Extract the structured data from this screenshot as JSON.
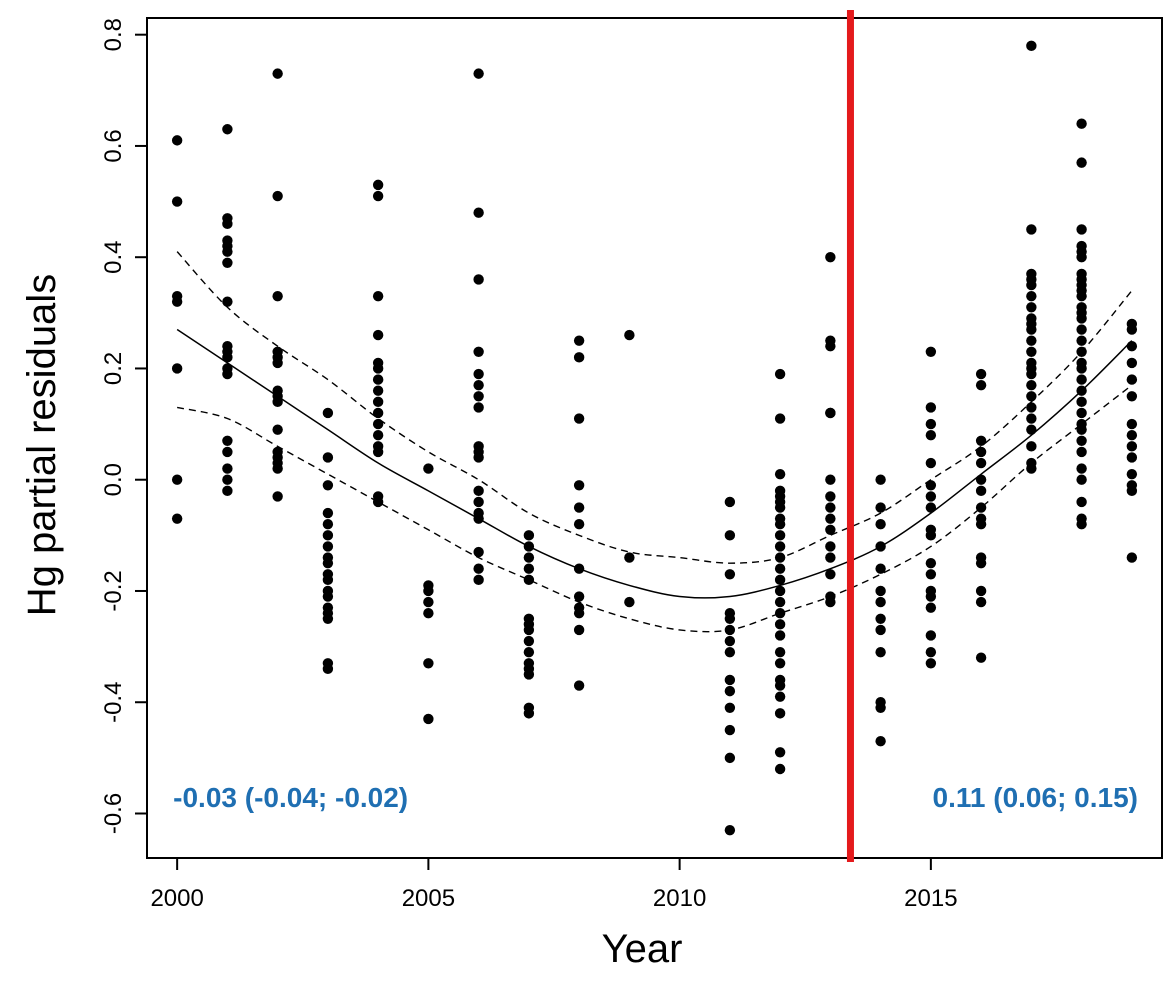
{
  "chart_data": {
    "type": "scatter",
    "title": "",
    "xlabel": "Year",
    "ylabel": "Hg partial residuals",
    "xlim": [
      1999.4,
      2019.6
    ],
    "ylim": [
      -0.68,
      0.83
    ],
    "x_ticks": [
      2000,
      2005,
      2010,
      2015
    ],
    "y_ticks": [
      -0.6,
      -0.4,
      -0.2,
      0.0,
      0.2,
      0.4,
      0.6,
      0.8
    ],
    "y_tick_labels": [
      "-0.6",
      "-0.4",
      "-0.2",
      "0.0",
      "0.2",
      "0.4",
      "0.6",
      "0.8"
    ],
    "grid": false,
    "colors": {
      "points": "#000000",
      "breakpoint": "#e41a1c",
      "annotation": "#1f6fb2"
    },
    "breakpoint_x": 2013.4,
    "annotations": [
      {
        "text": "-0.03 (-0.04; -0.02)",
        "x": 2000,
        "y": -0.57,
        "anchor": "start"
      },
      {
        "text": "0.11 (0.06; 0.15)",
        "x": 2019.6,
        "y": -0.57,
        "anchor": "end"
      }
    ],
    "points": [
      {
        "x": 2000,
        "y": [
          0.61,
          0.5,
          0.33,
          0.32,
          0.2,
          0.0,
          -0.07
        ]
      },
      {
        "x": 2001,
        "y": [
          0.63,
          0.47,
          0.46,
          0.43,
          0.42,
          0.41,
          0.39,
          0.32,
          0.24,
          0.23,
          0.22,
          0.2,
          0.19,
          0.07,
          0.05,
          0.02,
          0.0,
          -0.02
        ]
      },
      {
        "x": 2002,
        "y": [
          0.73,
          0.51,
          0.33,
          0.23,
          0.22,
          0.21,
          0.16,
          0.15,
          0.14,
          0.09,
          0.05,
          0.04,
          0.03,
          0.02,
          -0.03
        ]
      },
      {
        "x": 2003,
        "y": [
          0.12,
          0.04,
          -0.01,
          -0.06,
          -0.08,
          -0.1,
          -0.12,
          -0.14,
          -0.15,
          -0.17,
          -0.18,
          -0.2,
          -0.21,
          -0.23,
          -0.24,
          -0.25,
          -0.33,
          -0.34
        ]
      },
      {
        "x": 2004,
        "y": [
          0.53,
          0.51,
          0.33,
          0.26,
          0.21,
          0.2,
          0.18,
          0.16,
          0.14,
          0.12,
          0.1,
          0.08,
          0.06,
          0.05,
          -0.03,
          -0.04
        ]
      },
      {
        "x": 2005,
        "y": [
          0.02,
          -0.19,
          -0.2,
          -0.22,
          -0.24,
          -0.33,
          -0.43
        ]
      },
      {
        "x": 2006,
        "y": [
          0.73,
          0.48,
          0.36,
          0.23,
          0.19,
          0.17,
          0.15,
          0.13,
          0.06,
          0.05,
          0.04,
          -0.02,
          -0.04,
          -0.06,
          -0.07,
          -0.13,
          -0.16,
          -0.18
        ]
      },
      {
        "x": 2007,
        "y": [
          -0.1,
          -0.12,
          -0.14,
          -0.16,
          -0.18,
          -0.25,
          -0.26,
          -0.27,
          -0.29,
          -0.31,
          -0.33,
          -0.34,
          -0.35,
          -0.41,
          -0.42
        ]
      },
      {
        "x": 2008,
        "y": [
          0.25,
          0.22,
          0.11,
          -0.01,
          -0.05,
          -0.08,
          -0.16,
          -0.21,
          -0.23,
          -0.24,
          -0.27,
          -0.37
        ]
      },
      {
        "x": 2009,
        "y": [
          0.26,
          -0.14,
          -0.22
        ]
      },
      {
        "x": 2011,
        "y": [
          -0.04,
          -0.1,
          -0.17,
          -0.24,
          -0.25,
          -0.27,
          -0.29,
          -0.31,
          -0.36,
          -0.38,
          -0.41,
          -0.45,
          -0.5,
          -0.63
        ]
      },
      {
        "x": 2012,
        "y": [
          0.19,
          0.11,
          0.01,
          -0.02,
          -0.03,
          -0.04,
          -0.05,
          -0.07,
          -0.08,
          -0.1,
          -0.12,
          -0.14,
          -0.16,
          -0.18,
          -0.2,
          -0.22,
          -0.24,
          -0.26,
          -0.28,
          -0.31,
          -0.33,
          -0.36,
          -0.37,
          -0.39,
          -0.42,
          -0.49,
          -0.52
        ]
      },
      {
        "x": 2013,
        "y": [
          0.4,
          0.25,
          0.24,
          0.12,
          0.12,
          0.0,
          -0.03,
          -0.05,
          -0.07,
          -0.09,
          -0.12,
          -0.14,
          -0.17,
          -0.21,
          -0.22
        ]
      },
      {
        "x": 2014,
        "y": [
          0.0,
          -0.05,
          -0.08,
          -0.12,
          -0.16,
          -0.2,
          -0.22,
          -0.25,
          -0.27,
          -0.31,
          -0.4,
          -0.41,
          -0.47
        ]
      },
      {
        "x": 2015,
        "y": [
          0.23,
          0.13,
          0.1,
          0.08,
          0.03,
          -0.01,
          -0.03,
          -0.05,
          -0.09,
          -0.1,
          -0.15,
          -0.17,
          -0.2,
          -0.21,
          -0.23,
          -0.28,
          -0.31,
          -0.33
        ]
      },
      {
        "x": 2016,
        "y": [
          0.19,
          0.17,
          0.07,
          0.05,
          0.03,
          0.0,
          -0.02,
          -0.05,
          -0.07,
          -0.08,
          -0.14,
          -0.15,
          -0.2,
          -0.22,
          -0.32
        ]
      },
      {
        "x": 2017,
        "y": [
          0.78,
          0.45,
          0.37,
          0.36,
          0.35,
          0.33,
          0.31,
          0.29,
          0.28,
          0.27,
          0.25,
          0.23,
          0.21,
          0.2,
          0.19,
          0.17,
          0.15,
          0.13,
          0.11,
          0.09,
          0.06,
          0.03,
          0.02
        ]
      },
      {
        "x": 2018,
        "y": [
          0.64,
          0.57,
          0.45,
          0.42,
          0.41,
          0.4,
          0.37,
          0.36,
          0.35,
          0.34,
          0.33,
          0.31,
          0.3,
          0.29,
          0.27,
          0.25,
          0.23,
          0.21,
          0.2,
          0.18,
          0.16,
          0.14,
          0.12,
          0.1,
          0.09,
          0.07,
          0.05,
          0.02,
          0.0,
          -0.04,
          -0.07,
          -0.08
        ]
      },
      {
        "x": 2019,
        "y": [
          0.28,
          0.27,
          0.24,
          0.21,
          0.18,
          0.15,
          0.1,
          0.08,
          0.06,
          0.04,
          0.01,
          -0.01,
          -0.02,
          -0.14
        ]
      }
    ],
    "fit": {
      "x": [
        2000,
        2001,
        2002,
        2003,
        2004,
        2005,
        2006,
        2007,
        2008,
        2009,
        2010,
        2011,
        2012,
        2013,
        2014,
        2015,
        2016,
        2017,
        2018,
        2019
      ],
      "mean": [
        0.27,
        0.21,
        0.15,
        0.09,
        0.03,
        -0.02,
        -0.07,
        -0.12,
        -0.16,
        -0.19,
        -0.21,
        -0.21,
        -0.19,
        -0.16,
        -0.12,
        -0.06,
        0.01,
        0.08,
        0.16,
        0.25
      ],
      "upper": [
        0.41,
        0.31,
        0.24,
        0.18,
        0.11,
        0.05,
        0.0,
        -0.06,
        -0.1,
        -0.13,
        -0.14,
        -0.15,
        -0.14,
        -0.1,
        -0.06,
        0.0,
        0.06,
        0.14,
        0.23,
        0.34
      ],
      "lower": [
        0.13,
        0.11,
        0.06,
        0.01,
        -0.04,
        -0.09,
        -0.14,
        -0.18,
        -0.22,
        -0.25,
        -0.27,
        -0.27,
        -0.24,
        -0.21,
        -0.17,
        -0.12,
        -0.05,
        0.03,
        0.1,
        0.17
      ]
    }
  }
}
